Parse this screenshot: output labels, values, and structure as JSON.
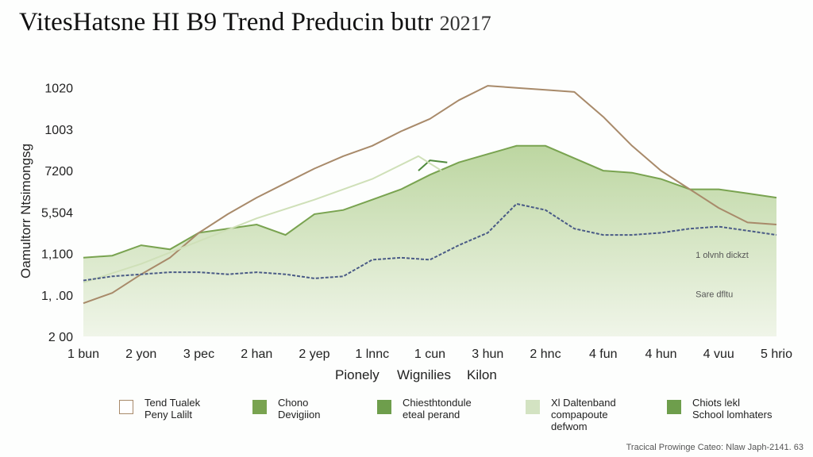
{
  "title": {
    "main": "VitesHatsne HI B9 Trend Preducin butr",
    "year": "20217"
  },
  "chart_data": {
    "type": "line",
    "title": "VitesHatsne HI B9 Trend Preducin butr 20217",
    "ylabel": "Oamultorr Ntsimongsg",
    "xlabel_parts": [
      "Pionely",
      "Wignilies",
      "Kilon"
    ],
    "xlabel": "Pionely Wignilies Kilon",
    "x_tick_labels": [
      "1 bun",
      "2 yon",
      "3 pec",
      "2 han",
      "2 yep",
      "1 lnnc",
      "1 cun",
      "3 hun",
      "2 hnc",
      "4 fun",
      "4 hun",
      "4 vuu",
      "5 hrio"
    ],
    "y_tick_labels": [
      "2 00",
      "1, .00",
      "1,100",
      "5,504",
      "7200",
      "1003",
      "1020"
    ],
    "y_tick_positions": [
      0,
      1,
      2,
      3,
      4,
      5,
      6
    ],
    "ylim": [
      0,
      6.3
    ],
    "xlim": [
      0,
      12
    ],
    "grid": false,
    "legend_position": "bottom",
    "series": [
      {
        "name": "Tend Tualek Peny Lalilt",
        "style": "line",
        "color": "#a88a6a",
        "x": [
          0,
          0.5,
          1,
          1.5,
          2,
          2.5,
          3,
          3.5,
          4,
          4.5,
          5,
          5.5,
          6,
          6.5,
          7,
          7.5,
          8,
          8.5,
          9,
          9.5,
          10,
          10.5,
          11,
          11.5,
          12
        ],
        "values": [
          0.8,
          1.05,
          1.5,
          1.9,
          2.5,
          2.95,
          3.35,
          3.7,
          4.05,
          4.35,
          4.6,
          4.95,
          5.25,
          5.7,
          6.05,
          6.0,
          5.95,
          5.9,
          5.3,
          4.6,
          4.0,
          3.55,
          3.1,
          2.75,
          2.7
        ]
      },
      {
        "name": "Chono Devigiion",
        "style": "area",
        "color": "#79a350",
        "fill": "#b9d49c",
        "x": [
          0,
          0.5,
          1,
          1.5,
          2,
          2.5,
          3,
          3.5,
          4,
          4.5,
          5,
          5.5,
          6,
          6.5,
          7,
          7.5,
          8,
          8.5,
          9,
          9.5,
          10,
          10.5,
          11,
          11.5,
          12
        ],
        "values": [
          1.9,
          1.95,
          2.2,
          2.1,
          2.5,
          2.6,
          2.7,
          2.45,
          2.95,
          3.05,
          3.3,
          3.55,
          3.9,
          4.2,
          4.4,
          4.6,
          4.6,
          4.3,
          4.0,
          3.95,
          3.8,
          3.55,
          3.55,
          3.45,
          3.35
        ]
      },
      {
        "name": "Chiesthtondule eteal perand",
        "style": "line",
        "color": "#4f8a3c",
        "x": [
          5.8,
          6.0,
          6.3
        ],
        "values": [
          4.0,
          4.25,
          4.2
        ]
      },
      {
        "name": "Xl Daltenband compapoute defwom",
        "style": "line",
        "color": "#cfe0b8",
        "x": [
          0,
          1,
          2,
          3,
          4,
          5,
          5.8,
          6.2
        ],
        "values": [
          1.3,
          1.75,
          2.3,
          2.85,
          3.3,
          3.8,
          4.35,
          4.0
        ]
      },
      {
        "name": "Chiots lekl School lomhaters",
        "style": "dashed",
        "color": "#4a5b86",
        "x": [
          0,
          0.5,
          1,
          1.5,
          2,
          2.5,
          3,
          3.5,
          4,
          4.5,
          5,
          5.5,
          6,
          6.5,
          7,
          7.5,
          8,
          8.5,
          9,
          9.5,
          10,
          10.5,
          11,
          11.5,
          12
        ],
        "values": [
          1.35,
          1.45,
          1.5,
          1.55,
          1.55,
          1.5,
          1.55,
          1.5,
          1.4,
          1.45,
          1.85,
          1.9,
          1.85,
          2.2,
          2.5,
          3.2,
          3.05,
          2.6,
          2.45,
          2.45,
          2.5,
          2.6,
          2.65,
          2.55,
          2.45
        ]
      }
    ],
    "annotations": [
      {
        "text": "1 olvnh dickzt",
        "x": 10.6,
        "y": 1.9
      },
      {
        "text": "Sare dfltu",
        "x": 10.6,
        "y": 0.95
      }
    ]
  },
  "legend": [
    {
      "label": "Tend Tualek\nPeny Lalilt",
      "type": "outline",
      "color": "#a88a6a"
    },
    {
      "label": "Chono\nDevigiion",
      "type": "fill",
      "color": "#79a350"
    },
    {
      "label": "Chiesthtondule\neteal perand",
      "type": "fill",
      "color": "#6e9e4c"
    },
    {
      "label": "Xl Daltenband\ncompapoute\ndefwom",
      "type": "fill",
      "color": "#d3e3c2"
    },
    {
      "label": "Chiots lekl\nSchool lomhaters",
      "type": "fill",
      "color": "#6e9e4c"
    }
  ],
  "source": "Tracical Prowinge Cateo: Nlaw Japh-2141. 63"
}
